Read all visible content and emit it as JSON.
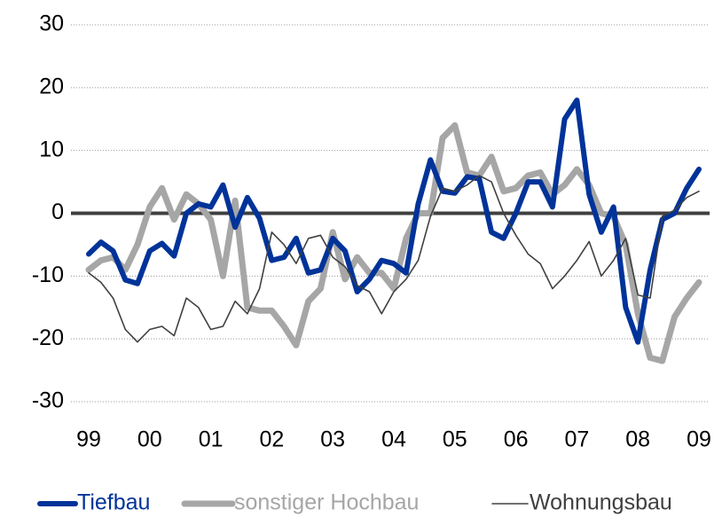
{
  "chart_data": {
    "type": "line",
    "x": [
      1999,
      1999.2,
      1999.4,
      1999.6,
      1999.8,
      2000,
      2000.2,
      2000.4,
      2000.6,
      2000.8,
      2001,
      2001.2,
      2001.4,
      2001.6,
      2001.8,
      2002,
      2002.2,
      2002.4,
      2002.6,
      2002.8,
      2003,
      2003.2,
      2003.4,
      2003.6,
      2003.8,
      2004,
      2004.2,
      2004.4,
      2004.6,
      2004.8,
      2005,
      2005.2,
      2005.4,
      2005.6,
      2005.8,
      2006,
      2006.2,
      2006.4,
      2006.6,
      2006.8,
      2007,
      2007.2,
      2007.4,
      2007.6,
      2007.8,
      2008,
      2008.2,
      2008.4,
      2008.6,
      2008.8,
      2009
    ],
    "series": [
      {
        "name": "Tiefbau",
        "color": "#003399",
        "values": [
          -6.5,
          -4.6,
          -6,
          -10.6,
          -11.2,
          -6,
          -4.8,
          -6.8,
          0,
          1.5,
          1,
          4.5,
          -2.2,
          2.5,
          -0.8,
          -7.5,
          -7,
          -4,
          -9.5,
          -9,
          -4,
          -6,
          -12.5,
          -10.5,
          -7.5,
          -8,
          -9.5,
          1.5,
          8.5,
          3.5,
          3.2,
          5.8,
          5.5,
          -3,
          -4,
          0,
          5,
          5,
          1,
          15,
          18,
          3,
          -3,
          1,
          -15,
          -20.5,
          -9,
          -1,
          0,
          4,
          7
        ]
      },
      {
        "name": "sonstiger Hochbau",
        "color": "#a6a6a6",
        "values": [
          -9,
          -7.5,
          -7,
          -9,
          -5,
          1,
          4,
          -1,
          3,
          1.5,
          -1,
          -10,
          2,
          -15,
          -15.5,
          -15.5,
          -18,
          -21,
          -14,
          -12,
          -3,
          -10.5,
          -7,
          -9.5,
          -9.5,
          -12,
          -4,
          0,
          0,
          12,
          14,
          6.5,
          6,
          9,
          3.5,
          4,
          6,
          6.5,
          3,
          4.5,
          7,
          4.5,
          0,
          -0.5,
          -5,
          -16,
          -23,
          -23.5,
          -16.5,
          -13.5,
          -11
        ]
      },
      {
        "name": "Wohnungsbau",
        "color": "#404040",
        "values": [
          -9.5,
          -11,
          -13.5,
          -18.5,
          -20.5,
          -18.5,
          -18,
          -19.5,
          -13.5,
          -15,
          -18.5,
          -18,
          -14,
          -16,
          -12,
          -3,
          -5,
          -8,
          -4,
          -3.5,
          -7,
          -8.5,
          -11.5,
          -12.5,
          -16,
          -12.5,
          -10.5,
          -7.5,
          -0.5,
          4,
          3.5,
          4.5,
          6,
          5,
          0,
          -3.5,
          -6.5,
          -8,
          -12,
          -10,
          -7.5,
          -4.5,
          -10,
          -7.5,
          -4,
          -13,
          -13.5,
          -0.5,
          0.5,
          2.5,
          3.5
        ]
      }
    ],
    "xlim": [
      1999,
      2009
    ],
    "xticks": [
      {
        "value": 1999,
        "label": "99"
      },
      {
        "value": 2000,
        "label": "00"
      },
      {
        "value": 2001,
        "label": "01"
      },
      {
        "value": 2002,
        "label": "02"
      },
      {
        "value": 2003,
        "label": "03"
      },
      {
        "value": 2004,
        "label": "04"
      },
      {
        "value": 2005,
        "label": "05"
      },
      {
        "value": 2006,
        "label": "06"
      },
      {
        "value": 2007,
        "label": "07"
      },
      {
        "value": 2008,
        "label": "08"
      },
      {
        "value": 2009,
        "label": "09"
      }
    ],
    "ylim": [
      -30,
      30
    ],
    "yticks": [
      -30,
      -20,
      -10,
      0,
      10,
      20,
      30
    ],
    "grid": true,
    "legend": "bottom"
  }
}
